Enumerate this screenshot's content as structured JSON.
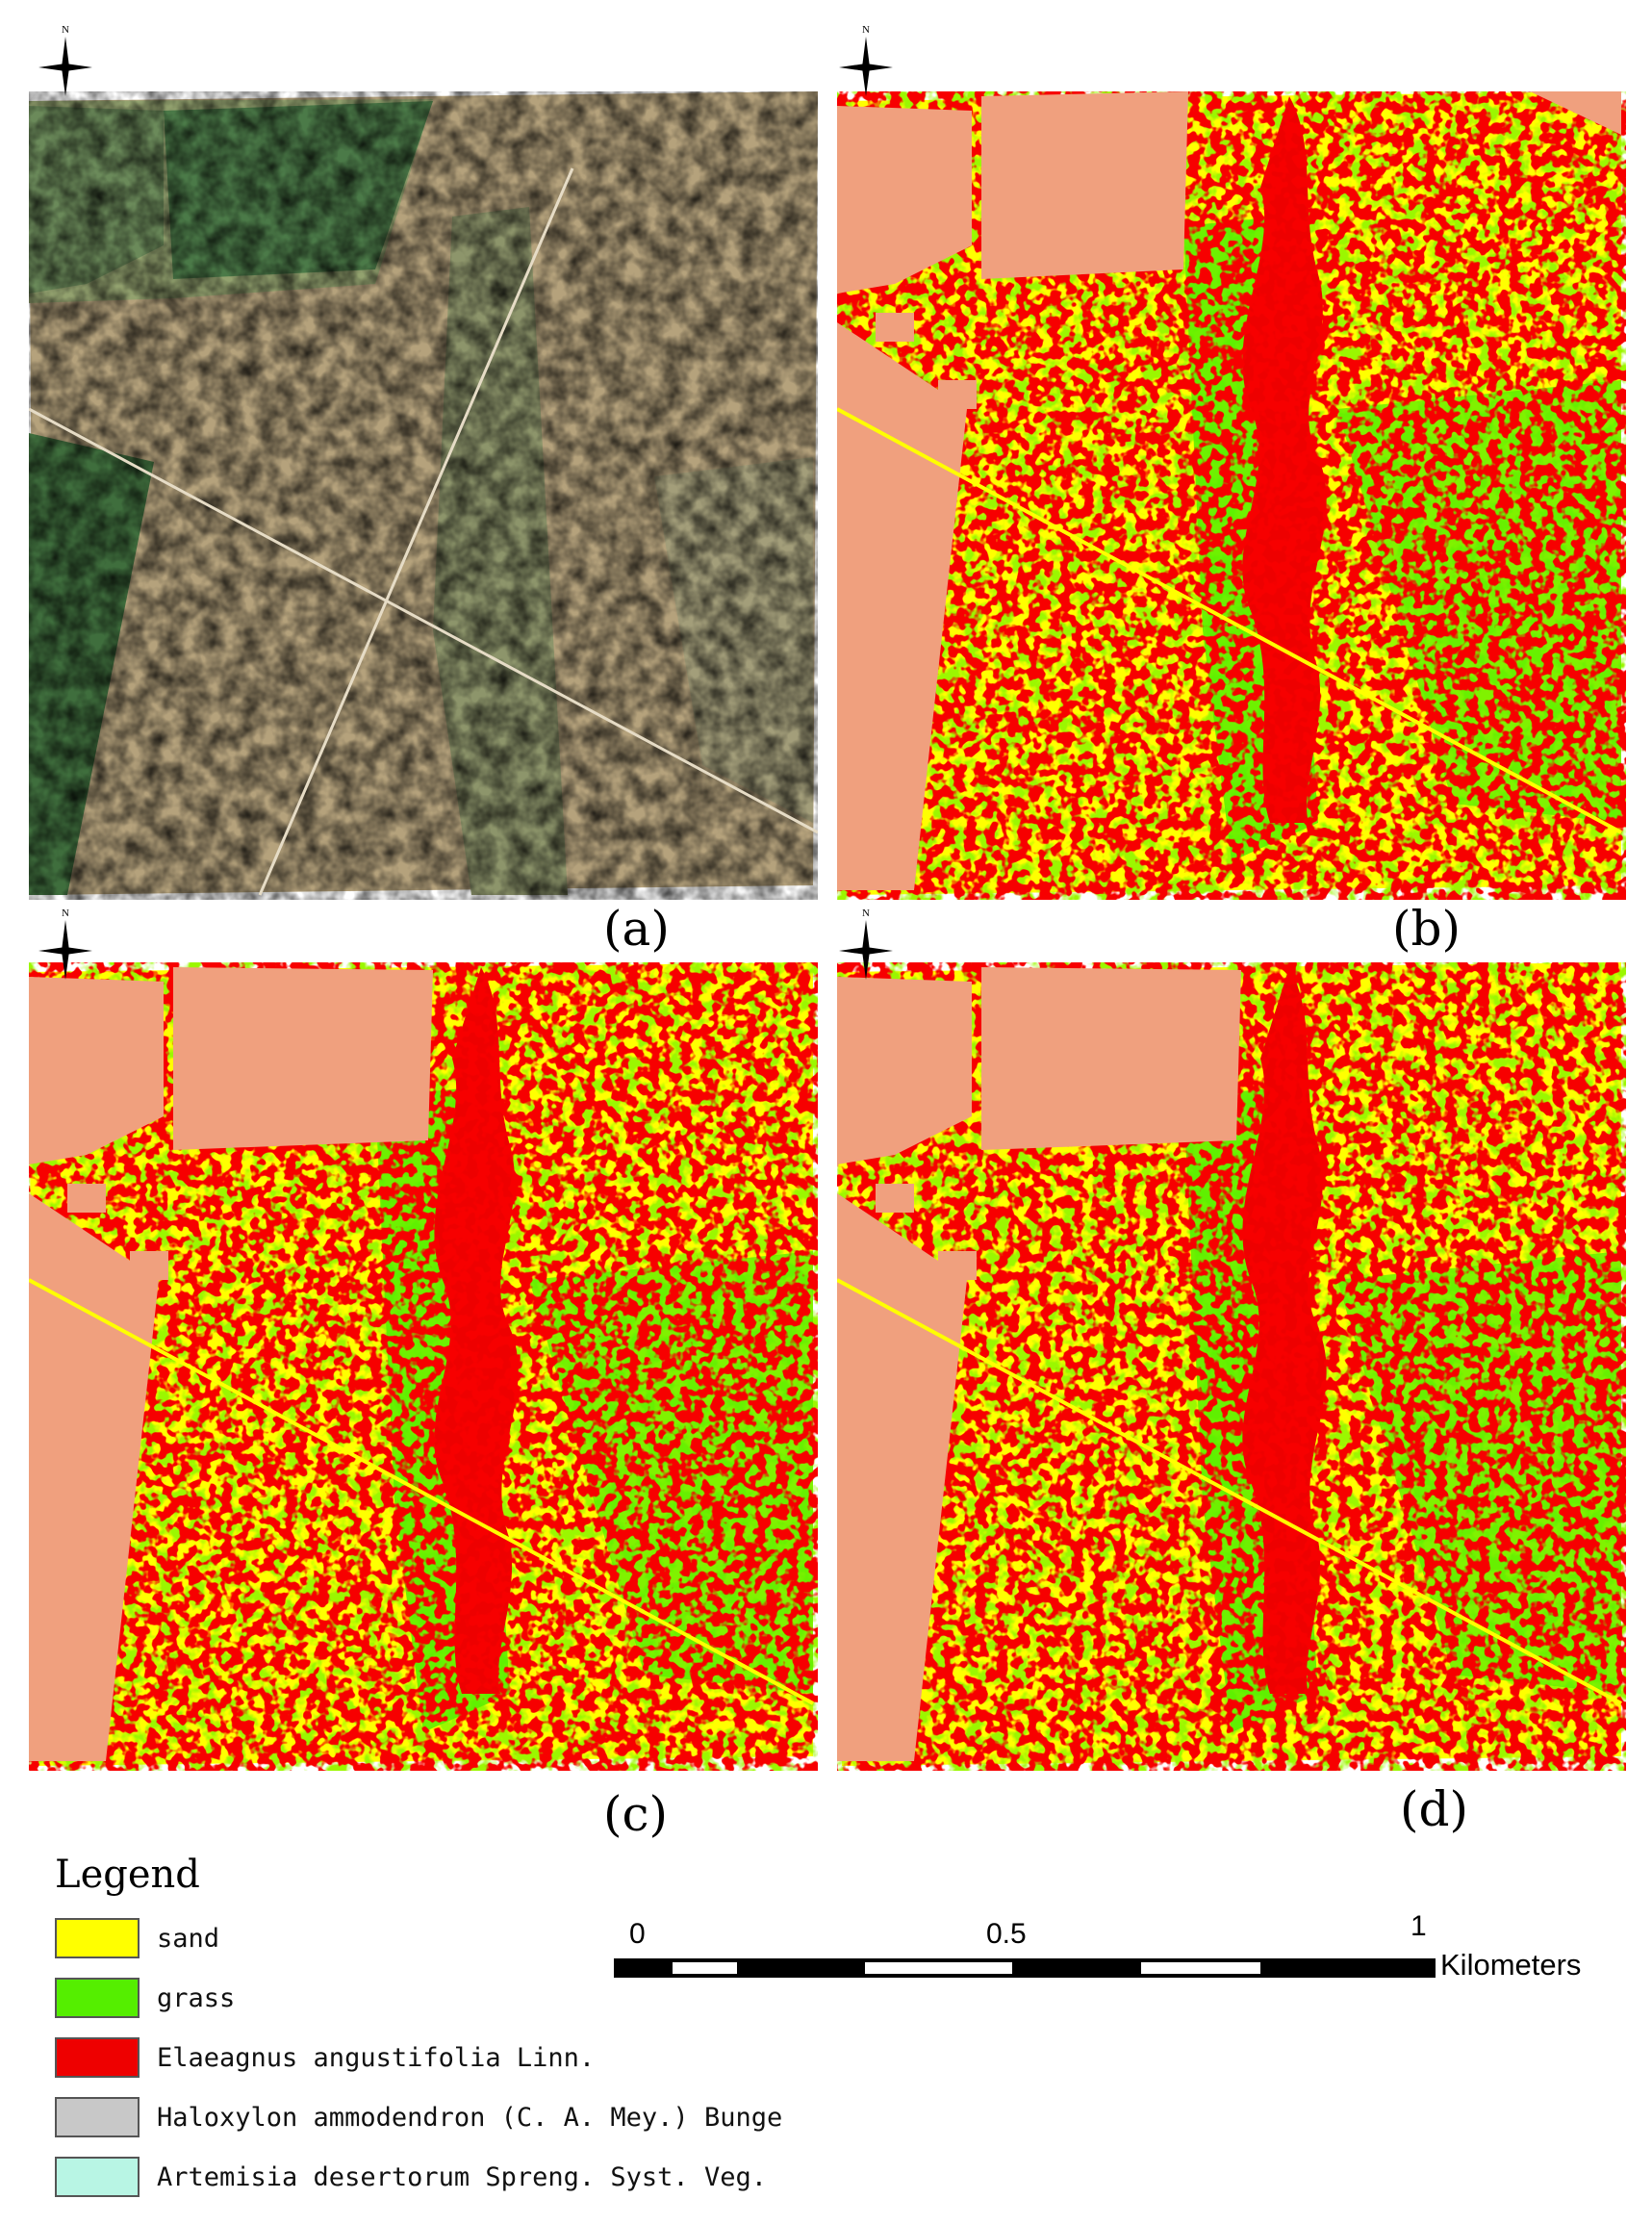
{
  "panels": [
    {
      "id": "a",
      "label": "(a)",
      "kind": "aerial-photo"
    },
    {
      "id": "b",
      "label": "(b)",
      "kind": "classification"
    },
    {
      "id": "c",
      "label": "(c)",
      "kind": "classification"
    },
    {
      "id": "d",
      "label": "(d)",
      "kind": "classification"
    }
  ],
  "north_arrow_label": "N",
  "legend": {
    "title": "Legend",
    "items": [
      {
        "label": "sand",
        "color": "#ffff00"
      },
      {
        "label": "grass",
        "color": "#55ee00"
      },
      {
        "label": "Elaeagnus angustifolia Linn.",
        "color": "#ee0000"
      },
      {
        "label": "Haloxylon ammodendron (C. A. Mey.) Bunge",
        "color": "#c8c8c8"
      },
      {
        "label": "Artemisia desertorum Spreng. Syst. Veg.",
        "color": "#b8f5e4"
      }
    ]
  },
  "masked_color": "#f0a07e",
  "scale_bar": {
    "tick_labels": [
      "0",
      "0.5",
      "1"
    ],
    "unit": "Kilometers"
  }
}
